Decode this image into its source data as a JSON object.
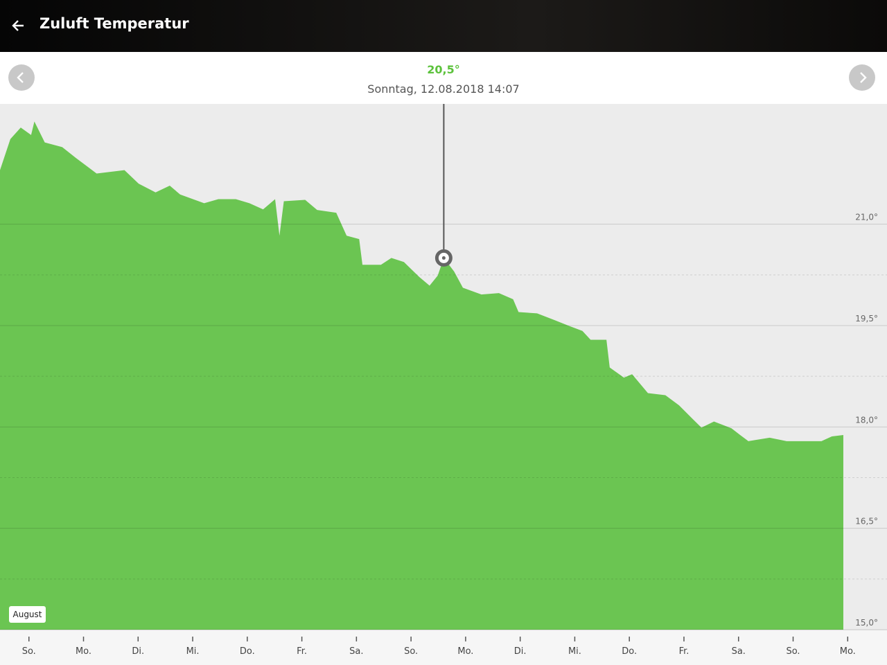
{
  "header": {
    "title": "Zuluft Temperatur"
  },
  "chart_data": {
    "type": "area",
    "color": "#6bc552",
    "x": [
      -0.53,
      -0.34,
      -0.15,
      0.04,
      0.1,
      0.29,
      0.61,
      0.86,
      1.24,
      1.75,
      2.01,
      2.32,
      2.58,
      2.77,
      3.21,
      3.47,
      3.79,
      4.04,
      4.29,
      4.51,
      4.59,
      4.67,
      5.06,
      5.28,
      5.63,
      5.82,
      6.05,
      6.11,
      6.45,
      6.64,
      6.87,
      7.15,
      7.34,
      7.49,
      7.6,
      7.79,
      7.95,
      8.29,
      8.61,
      8.87,
      8.97,
      9.31,
      9.63,
      9.88,
      10.14,
      10.29,
      10.58,
      10.64,
      10.9,
      11.05,
      11.34,
      11.66,
      11.91,
      12.17,
      12.32,
      12.55,
      12.87,
      13.03,
      13.18,
      13.57,
      13.88,
      14.52,
      14.71,
      14.92
    ],
    "series": [
      {
        "values": [
          21.8,
          22.26,
          22.43,
          22.32,
          22.52,
          22.21,
          22.14,
          21.98,
          21.75,
          21.8,
          21.6,
          21.47,
          21.57,
          21.44,
          21.31,
          21.37,
          21.37,
          21.31,
          21.22,
          21.37,
          20.83,
          21.34,
          21.36,
          21.21,
          21.17,
          20.83,
          20.78,
          20.4,
          20.4,
          20.5,
          20.44,
          20.22,
          20.09,
          20.24,
          20.5,
          20.3,
          20.06,
          19.96,
          19.98,
          19.89,
          19.7,
          19.68,
          19.58,
          19.5,
          19.42,
          19.29,
          19.29,
          18.88,
          18.73,
          18.78,
          18.5,
          18.47,
          18.32,
          18.11,
          17.99,
          18.08,
          17.98,
          17.88,
          17.79,
          17.84,
          17.79,
          17.79,
          17.86,
          17.88
        ]
      }
    ],
    "xlim": [
      -0.53,
      15.72
    ],
    "xticks": [
      {
        "value": 0,
        "label": "So."
      },
      {
        "value": 1,
        "label": "Mo."
      },
      {
        "value": 2,
        "label": "Di."
      },
      {
        "value": 3,
        "label": "Mi."
      },
      {
        "value": 4,
        "label": "Do."
      },
      {
        "value": 5,
        "label": "Fr."
      },
      {
        "value": 6,
        "label": "Sa."
      },
      {
        "value": 7,
        "label": "So."
      },
      {
        "value": 8,
        "label": "Mo."
      },
      {
        "value": 9,
        "label": "Di."
      },
      {
        "value": 10,
        "label": "Mi."
      },
      {
        "value": 11,
        "label": "Do."
      },
      {
        "value": 12,
        "label": "Fr."
      },
      {
        "value": 13,
        "label": "Sa."
      },
      {
        "value": 14,
        "label": "So."
      },
      {
        "value": 15,
        "label": "Mo."
      }
    ],
    "ylim": [
      15,
      22.78
    ],
    "yticks": [
      {
        "value": 15,
        "label": "15,0°"
      },
      {
        "value": 16.5,
        "label": "16,5°"
      },
      {
        "value": 18,
        "label": "18,0°"
      },
      {
        "value": 19.5,
        "label": "19,5°"
      },
      {
        "value": 21,
        "label": "21,0°"
      }
    ],
    "minor_yticks": [
      15.75,
      17.25,
      18.75,
      20.25
    ],
    "grid": true,
    "month_label": "August",
    "selected": {
      "x": 7.6,
      "value": 20.5,
      "value_label": "20,5°",
      "date_label": "Sonntag, 12.08.2018 14:07"
    }
  }
}
